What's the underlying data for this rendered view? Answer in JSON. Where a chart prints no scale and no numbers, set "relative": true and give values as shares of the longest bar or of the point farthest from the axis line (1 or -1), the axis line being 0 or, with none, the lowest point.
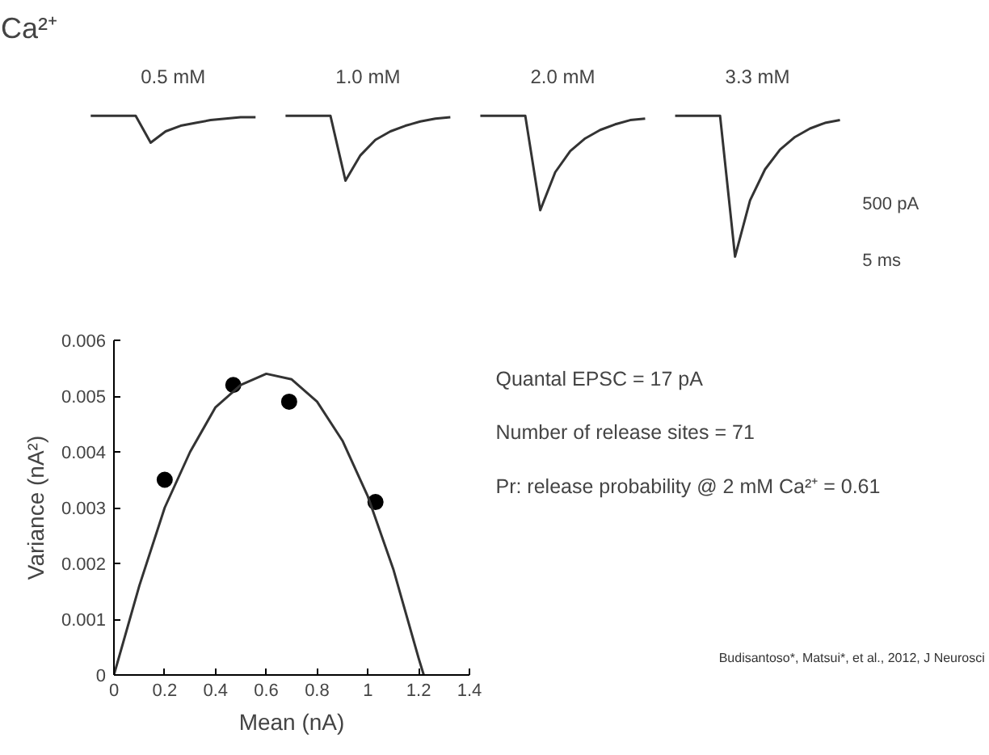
{
  "chart_data": [
    {
      "type": "line",
      "title": "Ca²⁺",
      "relative": true,
      "grid": false,
      "categories": [
        null,
        null,
        null,
        null,
        null,
        null,
        null,
        null,
        null,
        null,
        null,
        null,
        null,
        null,
        null,
        null,
        null,
        null,
        null,
        null,
        null,
        null,
        null,
        null,
        null,
        null,
        null,
        null,
        null,
        null,
        null,
        null,
        null,
        null,
        null,
        null,
        null,
        null,
        null,
        null,
        null,
        null,
        null,
        null,
        null,
        null,
        null,
        null,
        null,
        null,
        null
      ],
      "series": [
        {
          "name": "0.5 mM",
          "color": "#333333",
          "values": [
            1,
            1,
            1,
            1,
            0.81,
            0.89,
            0.93,
            0.95,
            0.97,
            0.98,
            0.99,
            0.99,
            null,
            null,
            null,
            null,
            null,
            null,
            null,
            null,
            null,
            null,
            null,
            null,
            null,
            null,
            null,
            null,
            null,
            null,
            null,
            null,
            null,
            null,
            null,
            null,
            null,
            null,
            null,
            null,
            null,
            null,
            null,
            null,
            null,
            null,
            null,
            null,
            null,
            null,
            null
          ]
        },
        {
          "name": "1.0 mM",
          "color": "#333333",
          "values": [
            null,
            null,
            null,
            null,
            null,
            null,
            null,
            null,
            null,
            null,
            null,
            null,
            null,
            1,
            1,
            1,
            1,
            0.54,
            0.72,
            0.83,
            0.89,
            0.93,
            0.96,
            0.98,
            0.99,
            null,
            null,
            null,
            null,
            null,
            null,
            null,
            null,
            null,
            null,
            null,
            null,
            null,
            null,
            null,
            null,
            null,
            null,
            null,
            null,
            null,
            null,
            null,
            null,
            null,
            null
          ]
        },
        {
          "name": "2.0 mM",
          "color": "#333333",
          "values": [
            null,
            null,
            null,
            null,
            null,
            null,
            null,
            null,
            null,
            null,
            null,
            null,
            null,
            null,
            null,
            null,
            null,
            null,
            null,
            null,
            null,
            null,
            null,
            null,
            null,
            null,
            1,
            1,
            1,
            1,
            0.33,
            0.6,
            0.75,
            0.84,
            0.9,
            0.94,
            0.97,
            0.98,
            null,
            null,
            null,
            null,
            null,
            null,
            null,
            null,
            null,
            null,
            null,
            null,
            null
          ]
        },
        {
          "name": "3.3 mM",
          "color": "#333333",
          "values": [
            null,
            null,
            null,
            null,
            null,
            null,
            null,
            null,
            null,
            null,
            null,
            null,
            null,
            null,
            null,
            null,
            null,
            null,
            null,
            null,
            null,
            null,
            null,
            null,
            null,
            null,
            null,
            null,
            null,
            null,
            null,
            null,
            null,
            null,
            null,
            null,
            null,
            null,
            null,
            1,
            1,
            1,
            1,
            0,
            0.4,
            0.62,
            0.76,
            0.85,
            0.91,
            0.95,
            0.97
          ]
        }
      ],
      "annotations": [
        "500 pA",
        "5 ms"
      ]
    },
    {
      "type": "scatter",
      "xlabel": "Mean (nA)",
      "ylabel": "Variance (nA²)",
      "grid": false,
      "marker": "circle",
      "xlim": [
        0,
        1.4
      ],
      "xticks": [
        0,
        0.2,
        0.4,
        0.6,
        0.8,
        1,
        1.2,
        1.4
      ],
      "ylim": [
        0,
        0.006
      ],
      "yticks": [
        0,
        0.001,
        0.002,
        0.003,
        0.004,
        0.005,
        0.006
      ],
      "series": [
        {
          "type": "scatter",
          "color": "#000000",
          "x": [
            0.2,
            0.47,
            0.69,
            1.03
          ],
          "values": [
            0.0035,
            0.0052,
            0.0049,
            0.0031
          ]
        },
        {
          "type": "line",
          "color": "#333333",
          "line_style": "solid",
          "marker": "none",
          "x": [
            0,
            0.1,
            0.2,
            0.3,
            0.4,
            0.5,
            0.6,
            0.7,
            0.8,
            0.9,
            1.0,
            1.1,
            1.2,
            1.22
          ],
          "values": [
            0,
            0.0016,
            0.003,
            0.004,
            0.0048,
            0.0052,
            0.0054,
            0.0053,
            0.0049,
            0.0042,
            0.0032,
            0.0019,
            0.0003,
            0
          ]
        }
      ],
      "annotations": [
        "Quantal EPSC = 17 pA",
        "Number of release sites = 71",
        "Pr: release probability @ 2 mM Ca²⁺ = 0.61",
        "Budisantoso*, Matsui*, et al., 2012, J Neurosci"
      ]
    }
  ]
}
